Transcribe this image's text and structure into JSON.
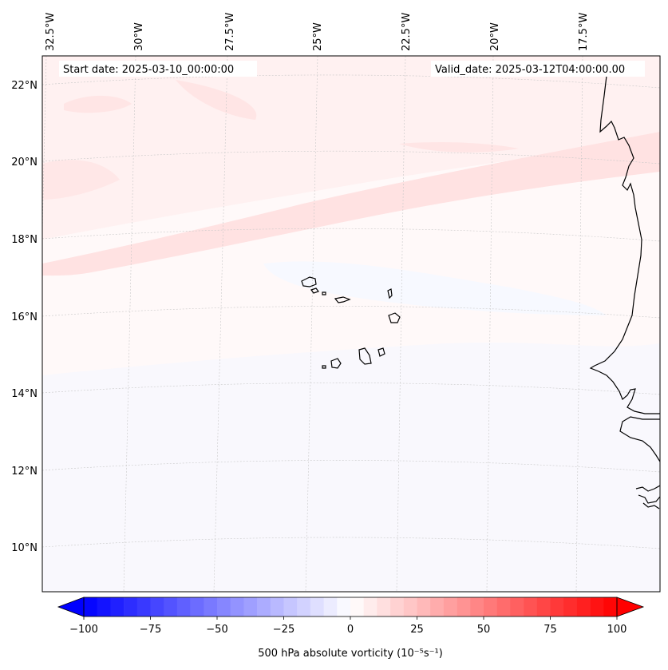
{
  "map": {
    "start_date": "Start date: 2025-03-10_00:00:00",
    "valid_date": "Valid_date: 2025-03-12T04:00:00.00",
    "lon_labels": [
      "32.5°W",
      "30°W",
      "27.5°W",
      "25°W",
      "22.5°W",
      "20°W",
      "17.5°W"
    ],
    "lat_labels": [
      "22°N",
      "20°N",
      "18°N",
      "16°N",
      "14°N",
      "12°N",
      "10°N"
    ],
    "field": "500 hPa absolute vorticity",
    "colors": {
      "coastline": "#000000",
      "positive_band": "#ffe3e3",
      "weak_positive": "#fff5f5",
      "weak_negative": "#f7f9ff",
      "gridline": "#c8c8c8"
    }
  },
  "colorbar": {
    "label": "500 hPa absolute vorticity (10⁻⁵s⁻¹)",
    "min": -100,
    "max": 100,
    "tick_values": [
      "−100",
      "−75",
      "−50",
      "−25",
      "0",
      "25",
      "50",
      "75",
      "100"
    ],
    "colormap": "bwr",
    "extend": "both"
  }
}
